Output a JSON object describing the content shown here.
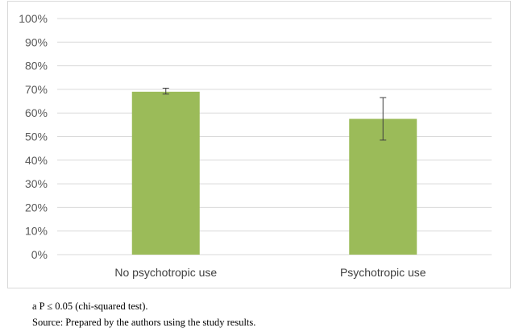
{
  "chart_data": {
    "type": "bar",
    "title": "",
    "xlabel": "",
    "ylabel": "",
    "categories": [
      "No psychotropic use",
      "Psychotropic use"
    ],
    "series": [
      {
        "values": [
          69,
          57.5
        ],
        "error_low": [
          68,
          48.5
        ],
        "error_high": [
          70.5,
          66.5
        ],
        "color": "#9bbb59"
      }
    ],
    "ylim": [
      0,
      100
    ],
    "ytick_step": 10,
    "ytick_format": "percent",
    "grid": true,
    "legend": "none"
  },
  "notes": {
    "line1": "a P ≤ 0.05 (chi-squared test).",
    "line2": "Source: Prepared by the authors using the study results."
  }
}
